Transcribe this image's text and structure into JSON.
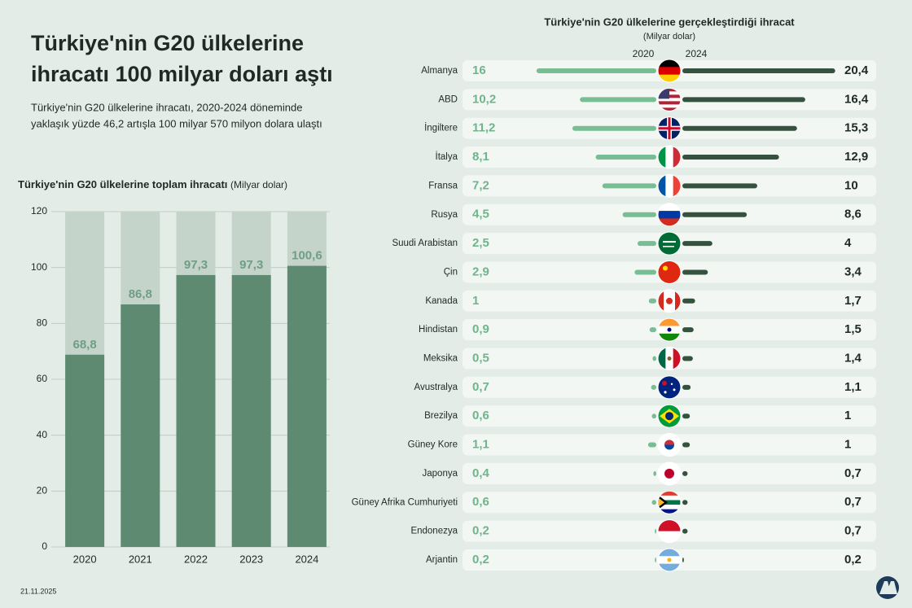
{
  "header": {
    "title": [
      "Türkiye'nin G20 ülkelerine",
      "ihracatı 100 milyar doları aştı"
    ],
    "subtitle": [
      "Türkiye'nin G20 ülkelerine ihracatı, 2020-2024 döneminde",
      "yaklaşık yüzde 46,2 artışla 100 milyar 570 milyon dolara ulaştı"
    ]
  },
  "date": "21.11.2025",
  "chart_data": [
    {
      "type": "bar",
      "title": "Türkiye'nin G20 ülkelerine toplam ihracatı",
      "unit": "(Milyar dolar)",
      "categories": [
        "2020",
        "2021",
        "2022",
        "2023",
        "2024"
      ],
      "values": [
        68.8,
        86.8,
        97.3,
        97.3,
        100.6
      ],
      "value_labels": [
        "68,8",
        "86,8",
        "97,3",
        "97,3",
        "100,6"
      ],
      "color": "#5f8a72",
      "ylim": [
        0,
        120
      ],
      "yticks": [
        0,
        20,
        40,
        60,
        80,
        100,
        120
      ],
      "grid": true
    },
    {
      "type": "butterfly",
      "title": "Türkiye'nin G20 ülkelerine gerçekleştirdiği ihracat",
      "unit": "(Milyar dolar)",
      "categories": [
        "Almanya",
        "ABD",
        "İngiltere",
        "İtalya",
        "Fransa",
        "Rusya",
        "Suudi Arabistan",
        "Çin",
        "Kanada",
        "Hindistan",
        "Meksika",
        "Avustralya",
        "Brezilya",
        "Güney Kore",
        "Japonya",
        "Güney Afrika Cumhuriyeti",
        "Endonezya",
        "Arjantin"
      ],
      "series": [
        {
          "name": "2020",
          "color": "#79bd95",
          "values": [
            16,
            10.2,
            11.2,
            8.1,
            7.2,
            4.5,
            2.5,
            2.9,
            1,
            0.9,
            0.5,
            0.7,
            0.6,
            1.1,
            0.4,
            0.6,
            0.2,
            0.2
          ],
          "value_labels": [
            "16",
            "10,2",
            "11,2",
            "8,1",
            "7,2",
            "4,5",
            "2,5",
            "2,9",
            "1",
            "0,9",
            "0,5",
            "0,7",
            "0,6",
            "1,1",
            "0,4",
            "0,6",
            "0,2",
            "0,2"
          ]
        },
        {
          "name": "2024",
          "color": "#35523f",
          "values": [
            20.4,
            16.4,
            15.3,
            12.9,
            10,
            8.6,
            4,
            3.4,
            1.7,
            1.5,
            1.4,
            1.1,
            1,
            1,
            0.7,
            0.7,
            0.7,
            0.2
          ],
          "value_labels": [
            "20,4",
            "16,4",
            "15,3",
            "12,9",
            "10",
            "8,6",
            "4",
            "3,4",
            "1,7",
            "1,5",
            "1,4",
            "1,1",
            "1",
            "1",
            "0,7",
            "0,7",
            "0,7",
            "0,2"
          ]
        }
      ]
    }
  ]
}
